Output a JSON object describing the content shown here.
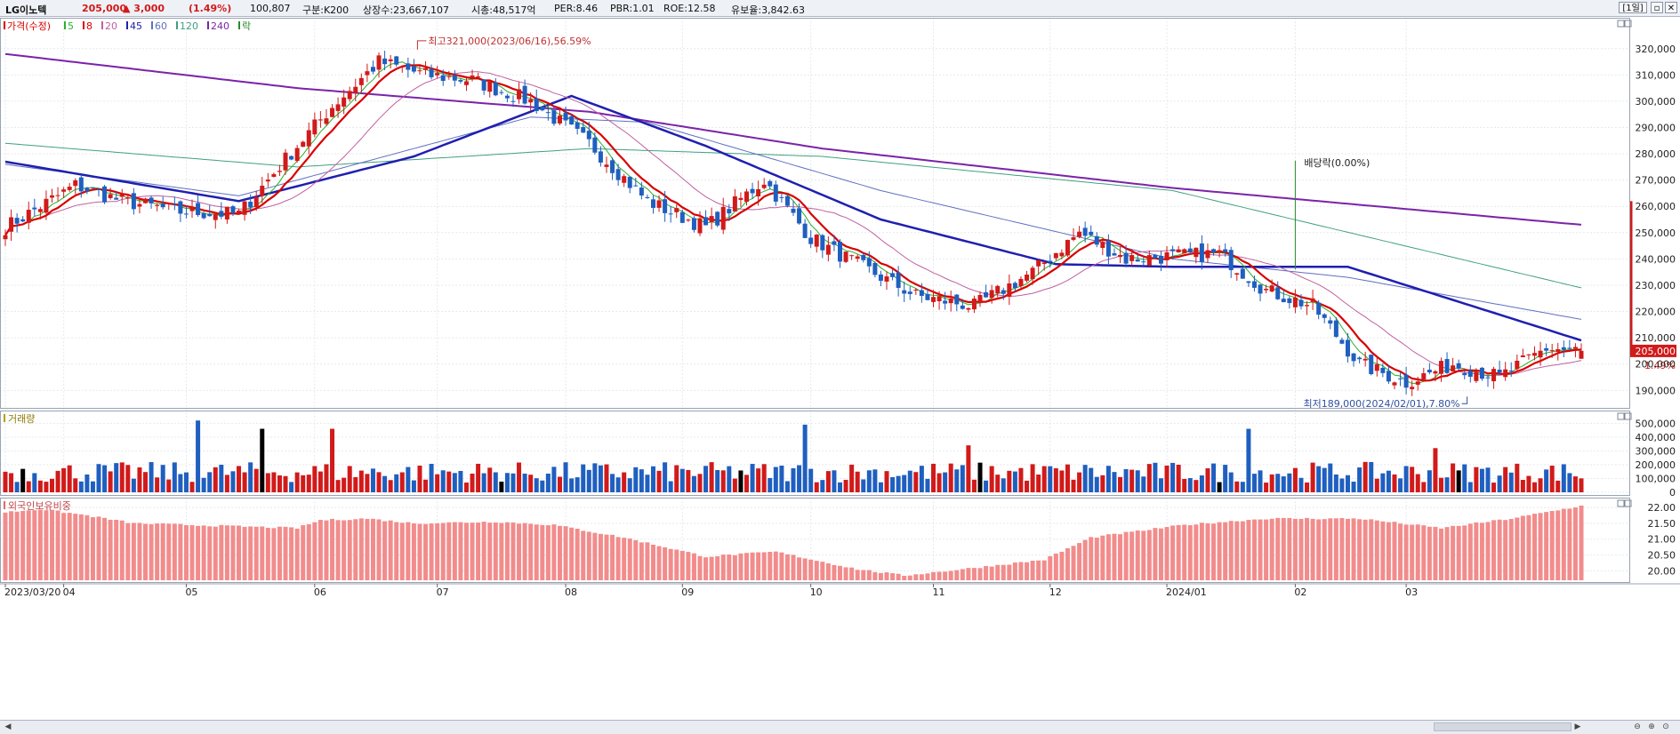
{
  "header": {
    "stock_name": "LG이노텍",
    "price": "205,000",
    "change": "▲ 3,000",
    "change_pct": "(1.49%)",
    "volume": "100,807",
    "market": "구분:K200",
    "shares": "상장수:23,667,107",
    "market_cap": "시총:48,517억",
    "per": "PER:8.46",
    "pbr": "PBR:1.01",
    "roe": "ROE:12.58",
    "reserve": "유보율:3,842.63",
    "period_button": "[1일]",
    "colors": {
      "up": "#d11a1a",
      "down": "#1f5fbf",
      "text": "#1a1a1a"
    }
  },
  "chart_data": [
    {
      "type": "candlestick",
      "title": "가격(수정)",
      "legend": [
        {
          "name": "5",
          "color": "#2bb02b"
        },
        {
          "name": "8",
          "color": "#d80000"
        },
        {
          "name": "20",
          "color": "#c060a0"
        },
        {
          "name": "45",
          "color": "#2020b0"
        },
        {
          "name": "60",
          "color": "#6070c0"
        },
        {
          "name": "120",
          "color": "#40a080"
        },
        {
          "name": "240",
          "color": "#7a24a8"
        },
        {
          "name": "락",
          "color": "#2a8a2a"
        }
      ],
      "x_tick_labels": [
        "2023/03/20",
        "04",
        "05",
        "06",
        "07",
        "08",
        "09",
        "10",
        "11",
        "12",
        "2024/01",
        "02",
        "03"
      ],
      "y_tick_labels": [
        "190,000",
        "200,000",
        "210,000",
        "220,000",
        "230,000",
        "240,000",
        "250,000",
        "260,000",
        "270,000",
        "280,000",
        "290,000",
        "300,000",
        "310,000",
        "320,000"
      ],
      "ylim": [
        184000,
        325000
      ],
      "close_anchors": [
        [
          0,
          252000
        ],
        [
          12,
          268000
        ],
        [
          20,
          262000
        ],
        [
          30,
          258000
        ],
        [
          40,
          257000
        ],
        [
          48,
          278000
        ],
        [
          56,
          298000
        ],
        [
          64,
          315000
        ],
        [
          72,
          310000
        ],
        [
          80,
          308000
        ],
        [
          90,
          300000
        ],
        [
          100,
          284000
        ],
        [
          110,
          262000
        ],
        [
          120,
          252000
        ],
        [
          130,
          270000
        ],
        [
          138,
          248000
        ],
        [
          146,
          238000
        ],
        [
          156,
          226000
        ],
        [
          166,
          222000
        ],
        [
          176,
          235000
        ],
        [
          184,
          250000
        ],
        [
          192,
          240000
        ],
        [
          200,
          241000
        ],
        [
          208,
          242000
        ],
        [
          216,
          228000
        ],
        [
          224,
          222000
        ],
        [
          232,
          200000
        ],
        [
          240,
          193000
        ],
        [
          248,
          200000
        ],
        [
          256,
          195000
        ],
        [
          264,
          206000
        ],
        [
          270,
          205000
        ]
      ],
      "open_price": 202000,
      "current_price": 205000,
      "current_price_label": "205,000",
      "current_change_label": "1.49%",
      "ma_lines": [
        {
          "name": "240",
          "color": "#7a24a8",
          "width": 2,
          "values": [
            [
              0,
              318000
            ],
            [
              50,
              305000
            ],
            [
              100,
              296000
            ],
            [
              140,
              282000
            ],
            [
              200,
              267000
            ],
            [
              270,
              253000
            ]
          ]
        },
        {
          "name": "120",
          "color": "#40a080",
          "width": 1,
          "values": [
            [
              0,
              284000
            ],
            [
              50,
              275000
            ],
            [
              100,
              282000
            ],
            [
              140,
              279000
            ],
            [
              200,
              266000
            ],
            [
              270,
              229000
            ]
          ]
        },
        {
          "name": "60",
          "color": "#6070c0",
          "width": 1,
          "values": [
            [
              0,
              276000
            ],
            [
              40,
              264000
            ],
            [
              90,
              294000
            ],
            [
              110,
              292000
            ],
            [
              150,
              266000
            ],
            [
              200,
              240000
            ],
            [
              230,
              233000
            ],
            [
              270,
              217000
            ]
          ]
        },
        {
          "name": "45",
          "color": "#1f1fb0",
          "width": 2.5,
          "values": [
            [
              0,
              277000
            ],
            [
              40,
              262000
            ],
            [
              70,
              279000
            ],
            [
              97,
              302000
            ],
            [
              120,
              283000
            ],
            [
              150,
              255000
            ],
            [
              180,
              238000
            ],
            [
              200,
              237000
            ],
            [
              230,
              237000
            ],
            [
              270,
              209000
            ]
          ]
        }
      ],
      "annotations": [
        {
          "text": "최고321,000(2023/06/16),56.59%",
          "x": 70,
          "y": 321000
        },
        {
          "text": "배당락(0.00%)",
          "x": 221,
          "y": 274000
        },
        {
          "text": "최저189,000(2024/02/01),7.80%",
          "x": 248,
          "y": 189000
        }
      ]
    },
    {
      "type": "bar",
      "title": "거래량",
      "ylim": [
        0,
        560000
      ],
      "y_tick_labels": [
        "0",
        "100,000",
        "200,000",
        "300,000",
        "400,000",
        "500,000"
      ],
      "spikes": [
        [
          33,
          520000
        ],
        [
          44,
          460000
        ],
        [
          56,
          460000
        ],
        [
          137,
          490000
        ],
        [
          165,
          340000
        ],
        [
          213,
          460000
        ],
        [
          245,
          320000
        ]
      ],
      "last_value": 100807
    },
    {
      "type": "bar",
      "title": "외국인보유비중",
      "ylim": [
        19.7,
        22.2
      ],
      "y_tick_labels": [
        "20.00",
        "20.50",
        "21.00",
        "21.50",
        "22.00"
      ],
      "anchors": [
        [
          0,
          21.85
        ],
        [
          6,
          21.95
        ],
        [
          14,
          21.75
        ],
        [
          22,
          21.5
        ],
        [
          50,
          21.35
        ],
        [
          54,
          21.6
        ],
        [
          62,
          21.65
        ],
        [
          70,
          21.5
        ],
        [
          84,
          21.55
        ],
        [
          94,
          21.45
        ],
        [
          106,
          21.05
        ],
        [
          120,
          20.45
        ],
        [
          132,
          20.6
        ],
        [
          146,
          20.05
        ],
        [
          154,
          19.85
        ],
        [
          164,
          20.05
        ],
        [
          178,
          20.35
        ],
        [
          186,
          21.05
        ],
        [
          202,
          21.45
        ],
        [
          216,
          21.65
        ],
        [
          232,
          21.65
        ],
        [
          246,
          21.35
        ],
        [
          258,
          21.65
        ],
        [
          264,
          21.85
        ],
        [
          270,
          22.05
        ]
      ]
    }
  ],
  "scrollbar": {
    "zoom_icons": [
      "zoom-out-icon",
      "zoom-in-icon",
      "zoom-fit-icon"
    ]
  }
}
